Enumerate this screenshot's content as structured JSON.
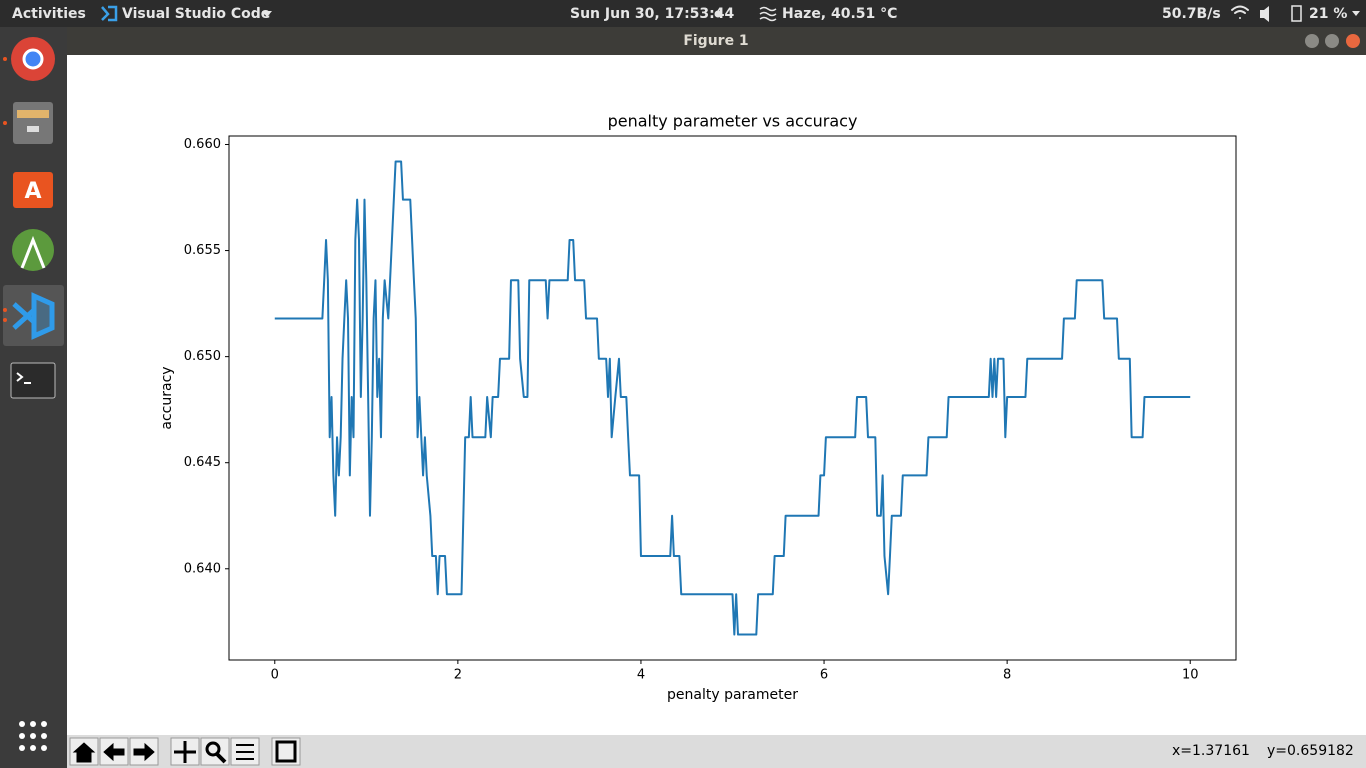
{
  "topbar": {
    "activities": "Activities",
    "app": "Visual Studio Code",
    "clock": "Sun Jun 30, 17:53:44",
    "weather": "Haze, 40.51 °C",
    "network": "50.7B/s",
    "battery": "21 %"
  },
  "window": {
    "title": "Figure 1"
  },
  "status": {
    "x": "x=1.37161",
    "y": "y=0.659182"
  },
  "chart_data": {
    "type": "line",
    "title": "penalty parameter vs accuracy",
    "x_label": "penalty parameter",
    "y_label": "accuracy",
    "color": "#1f77b4",
    "grid": false,
    "xlim": [
      -0.5,
      10.5
    ],
    "ylim": [
      0.6357,
      0.6604
    ],
    "xticks": [
      0,
      2,
      4,
      6,
      8,
      10
    ],
    "yticks": [
      {
        "value": 0.64,
        "label": "0.640"
      },
      0.645,
      {
        "value": 0.65,
        "label": "0.650"
      },
      0.655,
      {
        "value": 0.66,
        "label": "0.660"
      }
    ],
    "x": [
      0,
      0.52,
      0.54,
      0.56,
      0.58,
      0.6,
      0.62,
      0.64,
      0.66,
      0.68,
      0.7,
      0.72,
      0.74,
      0.76,
      0.78,
      0.8,
      0.82,
      0.84,
      0.86,
      0.88,
      0.9,
      0.92,
      0.94,
      0.96,
      0.98,
      1.0,
      1.02,
      1.04,
      1.06,
      1.08,
      1.1,
      1.12,
      1.14,
      1.16,
      1.18,
      1.2,
      1.24,
      1.28,
      1.32,
      1.38,
      1.4,
      1.48,
      1.5,
      1.52,
      1.54,
      1.56,
      1.58,
      1.62,
      1.64,
      1.66,
      1.7,
      1.72,
      1.76,
      1.78,
      1.8,
      1.86,
      1.88,
      2.04,
      2.08,
      2.12,
      2.14,
      2.16,
      2.3,
      2.32,
      2.36,
      2.38,
      2.44,
      2.46,
      2.56,
      2.58,
      2.66,
      2.68,
      2.72,
      2.76,
      2.78,
      2.96,
      2.98,
      3.0,
      3.2,
      3.22,
      3.26,
      3.28,
      3.38,
      3.4,
      3.52,
      3.54,
      3.62,
      3.64,
      3.66,
      3.68,
      3.72,
      3.76,
      3.78,
      3.84,
      3.86,
      3.88,
      3.98,
      4.0,
      4.32,
      4.34,
      4.36,
      4.42,
      4.44,
      5.0,
      5.02,
      5.04,
      5.06,
      5.26,
      5.28,
      5.44,
      5.46,
      5.56,
      5.58,
      5.94,
      5.96,
      6.0,
      6.02,
      6.34,
      6.36,
      6.46,
      6.48,
      6.56,
      6.58,
      6.62,
      6.64,
      6.66,
      6.7,
      6.72,
      6.74,
      6.84,
      6.86,
      7.12,
      7.14,
      7.34,
      7.36,
      7.8,
      7.82,
      7.84,
      7.86,
      7.88,
      7.9,
      7.96,
      7.98,
      8.0,
      8.2,
      8.22,
      8.6,
      8.62,
      8.74,
      8.76,
      9.04,
      9.06,
      9.2,
      9.22,
      9.34,
      9.36,
      9.48,
      9.5,
      10
    ],
    "values": [
      0.6518,
      0.6518,
      0.6536,
      0.6555,
      0.6536,
      0.6462,
      0.6481,
      0.6444,
      0.6425,
      0.6462,
      0.6444,
      0.6462,
      0.6499,
      0.6518,
      0.6536,
      0.6518,
      0.6444,
      0.6481,
      0.6462,
      0.6555,
      0.6574,
      0.6555,
      0.6481,
      0.6518,
      0.6574,
      0.6536,
      0.6481,
      0.6425,
      0.6462,
      0.6518,
      0.6536,
      0.6481,
      0.6499,
      0.6462,
      0.6518,
      0.6536,
      0.6518,
      0.6555,
      0.6592,
      0.6592,
      0.6574,
      0.6574,
      0.6555,
      0.6536,
      0.6518,
      0.6462,
      0.6481,
      0.6444,
      0.6462,
      0.6444,
      0.6425,
      0.6406,
      0.6406,
      0.6388,
      0.6406,
      0.6406,
      0.6388,
      0.6388,
      0.6462,
      0.6462,
      0.6481,
      0.6462,
      0.6462,
      0.6481,
      0.6462,
      0.6481,
      0.6481,
      0.6499,
      0.6499,
      0.6536,
      0.6536,
      0.6499,
      0.6481,
      0.6481,
      0.6536,
      0.6536,
      0.6518,
      0.6536,
      0.6536,
      0.6555,
      0.6555,
      0.6536,
      0.6536,
      0.6518,
      0.6518,
      0.6499,
      0.6499,
      0.6481,
      0.6499,
      0.6462,
      0.6481,
      0.6499,
      0.6481,
      0.6481,
      0.6462,
      0.6444,
      0.6444,
      0.6406,
      0.6406,
      0.6425,
      0.6406,
      0.6406,
      0.6388,
      0.6388,
      0.6369,
      0.6388,
      0.6369,
      0.6369,
      0.6388,
      0.6388,
      0.6406,
      0.6406,
      0.6425,
      0.6425,
      0.6444,
      0.6444,
      0.6462,
      0.6462,
      0.6481,
      0.6481,
      0.6462,
      0.6462,
      0.6425,
      0.6425,
      0.6444,
      0.6406,
      0.6388,
      0.6406,
      0.6425,
      0.6425,
      0.6444,
      0.6444,
      0.6462,
      0.6462,
      0.6481,
      0.6481,
      0.6499,
      0.6481,
      0.6499,
      0.6481,
      0.6499,
      0.6499,
      0.6462,
      0.6481,
      0.6481,
      0.6499,
      0.6499,
      0.6518,
      0.6518,
      0.6536,
      0.6536,
      0.6518,
      0.6518,
      0.6499,
      0.6499,
      0.6462,
      0.6462,
      0.6481,
      0.6481
    ]
  }
}
